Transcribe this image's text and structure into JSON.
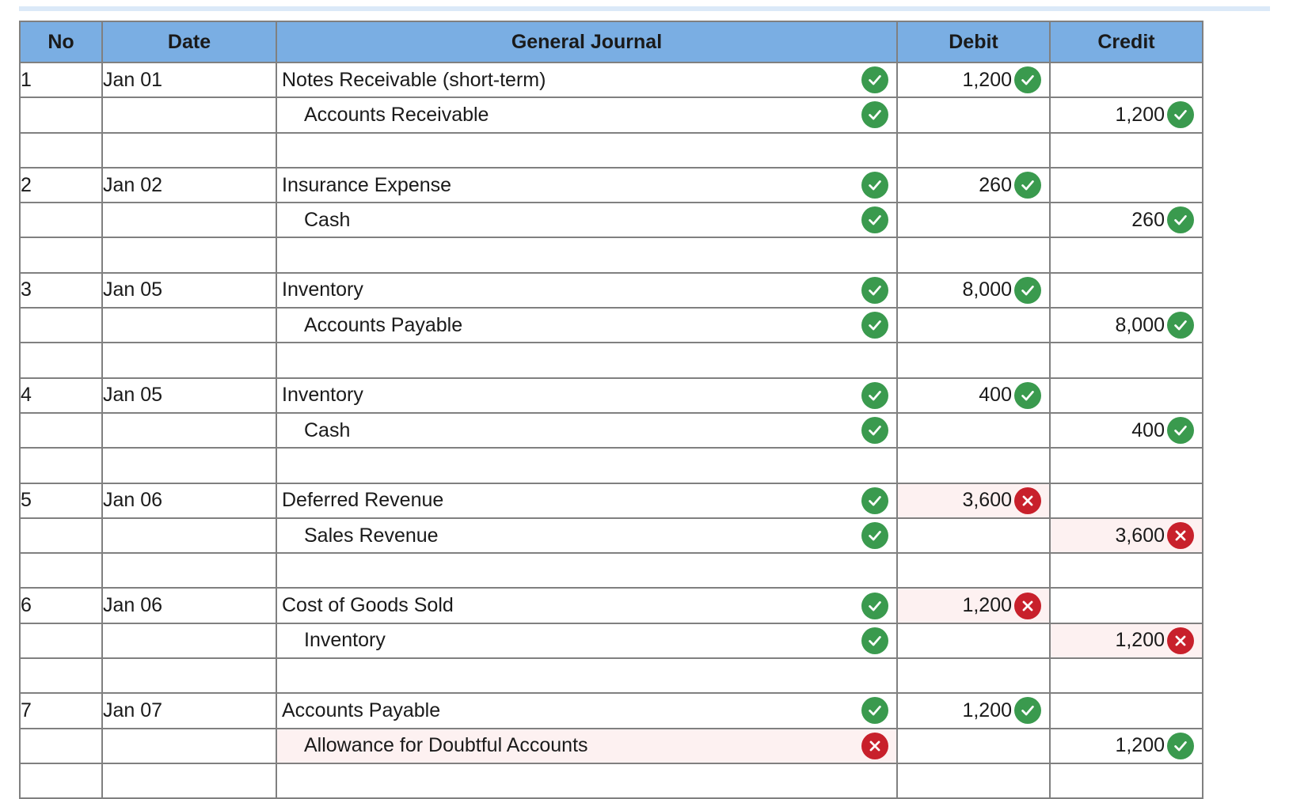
{
  "headers": {
    "no": "No",
    "date": "Date",
    "journal": "General Journal",
    "debit": "Debit",
    "credit": "Credit"
  },
  "entries": [
    {
      "no": "1",
      "date": "Jan 01",
      "debit_account": "Notes Receivable (short-term)",
      "debit_account_status": "correct",
      "debit_amount": "1,200",
      "debit_amount_status": "correct",
      "credit_account": "Accounts Receivable",
      "credit_account_status": "correct",
      "credit_amount": "1,200",
      "credit_amount_status": "correct"
    },
    {
      "no": "2",
      "date": "Jan 02",
      "debit_account": "Insurance Expense",
      "debit_account_status": "correct",
      "debit_amount": "260",
      "debit_amount_status": "correct",
      "credit_account": "Cash",
      "credit_account_status": "correct",
      "credit_amount": "260",
      "credit_amount_status": "correct"
    },
    {
      "no": "3",
      "date": "Jan 05",
      "debit_account": "Inventory",
      "debit_account_status": "correct",
      "debit_amount": "8,000",
      "debit_amount_status": "correct",
      "credit_account": "Accounts Payable",
      "credit_account_status": "correct",
      "credit_amount": "8,000",
      "credit_amount_status": "correct"
    },
    {
      "no": "4",
      "date": "Jan 05",
      "debit_account": "Inventory",
      "debit_account_status": "correct",
      "debit_amount": "400",
      "debit_amount_status": "correct",
      "credit_account": "Cash",
      "credit_account_status": "correct",
      "credit_amount": "400",
      "credit_amount_status": "correct"
    },
    {
      "no": "5",
      "date": "Jan 06",
      "debit_account": "Deferred Revenue",
      "debit_account_status": "correct",
      "debit_amount": "3,600",
      "debit_amount_status": "incorrect",
      "credit_account": "Sales Revenue",
      "credit_account_status": "correct",
      "credit_amount": "3,600",
      "credit_amount_status": "incorrect"
    },
    {
      "no": "6",
      "date": "Jan 06",
      "debit_account": "Cost of Goods Sold",
      "debit_account_status": "correct",
      "debit_amount": "1,200",
      "debit_amount_status": "incorrect",
      "credit_account": "Inventory",
      "credit_account_status": "correct",
      "credit_amount": "1,200",
      "credit_amount_status": "incorrect"
    },
    {
      "no": "7",
      "date": "Jan 07",
      "debit_account": "Accounts Payable",
      "debit_account_status": "correct",
      "debit_amount": "1,200",
      "debit_amount_status": "correct",
      "credit_account": "Allowance for Doubtful Accounts",
      "credit_account_status": "incorrect",
      "credit_amount": "1,200",
      "credit_amount_status": "correct"
    }
  ],
  "icons": {
    "correct": "check-circle-icon",
    "incorrect": "x-circle-icon"
  },
  "colors": {
    "header": "#7aaee3",
    "correct": "#3a9a4e",
    "incorrect": "#c8202b",
    "incorrect_bg": "#fdf1f1"
  }
}
